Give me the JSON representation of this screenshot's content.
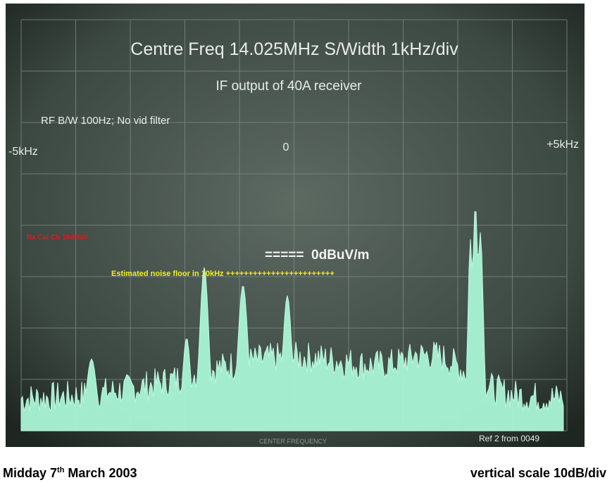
{
  "screen": {
    "title": "Centre Freq 14.025MHz   S/Width 1kHz/div",
    "subtitle": "IF output of 40A receiver",
    "settings": "RF B/W 100Hz; No vid filter",
    "freq_labels": [
      "-5kHz",
      "0",
      "+5kHz"
    ],
    "cal_label": "Rx Cal Ch 10dBuV",
    "reference_label": "=====  0dBuV/m",
    "noise_floor_label": "Estimated noise floor in 10kHz ++++++++++++++++++++++++",
    "ref_note": "Ref 2 from 0049",
    "graticule_label": "CENTER FREQUENCY"
  },
  "caption": {
    "left": {
      "main": "Midday 7",
      "sup": "th",
      "rest": " March 2003"
    },
    "right": "vertical scale 10dB/div"
  }
}
